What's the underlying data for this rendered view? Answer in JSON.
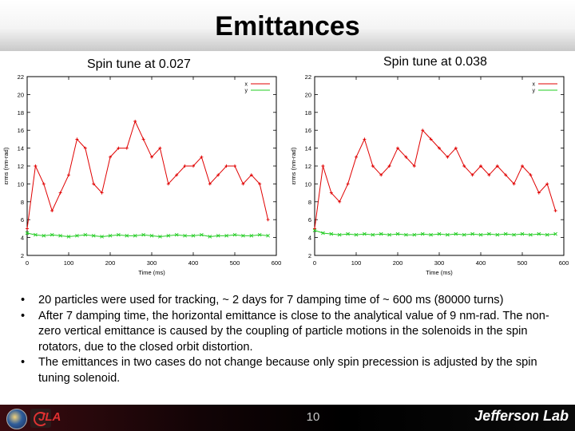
{
  "slide": {
    "title": "Emittances",
    "page_number": "10",
    "footer_logo_text": "Jefferson Lab",
    "footer_small_logo": "JLA"
  },
  "bullets": [
    "20 particles were used for tracking, ~ 2 days for 7 damping time of ~ 600 ms  (80000 turns)",
    "After 7 damping time, the horizontal emittance is close to the analytical value of 9 nm-rad. The non-zero vertical emittance is caused by the coupling of particle motions in the solenoids in the spin rotators, due to the closed orbit distortion.",
    "The emittances in two cases do not change because only spin precession is adjusted by the spin tuning solenoid."
  ],
  "bullet_symbol": "•",
  "chart_data": [
    {
      "type": "line",
      "title": "Spin tune at 0.027",
      "xlabel": "Time (ms)",
      "ylabel": "εrms (nm-rad)",
      "xlim": [
        0,
        600
      ],
      "ylim": [
        2,
        22
      ],
      "xticks": [
        0,
        100,
        200,
        300,
        400,
        500,
        600
      ],
      "yticks": [
        2,
        4,
        6,
        8,
        10,
        12,
        14,
        16,
        18,
        20,
        22
      ],
      "grid": false,
      "legend_position": "top-right",
      "x": [
        0,
        20,
        40,
        60,
        80,
        100,
        120,
        140,
        160,
        180,
        200,
        220,
        240,
        260,
        280,
        300,
        320,
        340,
        360,
        380,
        400,
        420,
        440,
        460,
        480,
        500,
        520,
        540,
        560,
        580
      ],
      "series": [
        {
          "name": "x",
          "color": "#e00000",
          "marker": "+",
          "values": [
            5,
            12,
            10,
            7,
            9,
            11,
            15,
            14,
            10,
            9,
            13,
            14,
            14,
            17,
            15,
            13,
            14,
            10,
            11,
            12,
            12,
            13,
            10,
            11,
            12,
            12,
            10,
            11,
            10,
            6
          ]
        },
        {
          "name": "y",
          "color": "#22cc22",
          "marker": "x",
          "values": [
            4.5,
            4.3,
            4.2,
            4.3,
            4.2,
            4.1,
            4.2,
            4.3,
            4.2,
            4.1,
            4.2,
            4.3,
            4.2,
            4.2,
            4.3,
            4.2,
            4.1,
            4.2,
            4.3,
            4.2,
            4.2,
            4.3,
            4.1,
            4.2,
            4.2,
            4.3,
            4.2,
            4.2,
            4.3,
            4.2
          ]
        }
      ]
    },
    {
      "type": "line",
      "title": "Spin tune at 0.038",
      "xlabel": "Time (ms)",
      "ylabel": "εrms (nm-rad)",
      "xlim": [
        0,
        600
      ],
      "ylim": [
        2,
        22
      ],
      "xticks": [
        0,
        100,
        200,
        300,
        400,
        500,
        600
      ],
      "yticks": [
        2,
        4,
        6,
        8,
        10,
        12,
        14,
        16,
        18,
        20,
        22
      ],
      "grid": false,
      "legend_position": "top-right",
      "x": [
        0,
        20,
        40,
        60,
        80,
        100,
        120,
        140,
        160,
        180,
        200,
        220,
        240,
        260,
        280,
        300,
        320,
        340,
        360,
        380,
        400,
        420,
        440,
        460,
        480,
        500,
        520,
        540,
        560,
        580
      ],
      "series": [
        {
          "name": "x",
          "color": "#e00000",
          "marker": "+",
          "values": [
            5,
            12,
            9,
            8,
            10,
            13,
            15,
            12,
            11,
            12,
            14,
            13,
            12,
            16,
            15,
            14,
            13,
            14,
            12,
            11,
            12,
            11,
            12,
            11,
            10,
            12,
            11,
            9,
            10,
            7
          ]
        },
        {
          "name": "y",
          "color": "#22cc22",
          "marker": "x",
          "values": [
            4.8,
            4.5,
            4.4,
            4.3,
            4.4,
            4.3,
            4.4,
            4.3,
            4.4,
            4.3,
            4.4,
            4.3,
            4.3,
            4.4,
            4.3,
            4.4,
            4.3,
            4.4,
            4.3,
            4.4,
            4.3,
            4.4,
            4.3,
            4.4,
            4.3,
            4.4,
            4.3,
            4.4,
            4.3,
            4.4
          ]
        }
      ]
    }
  ]
}
